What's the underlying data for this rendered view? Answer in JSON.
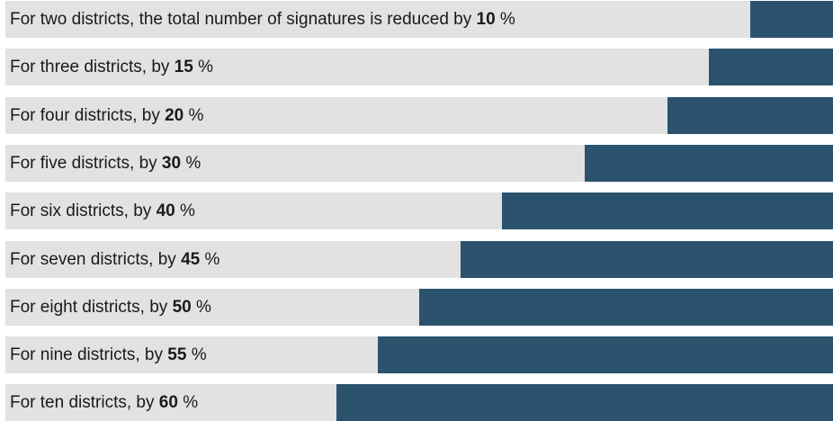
{
  "colors": {
    "track": "#e2e2e2",
    "fill": "#2b536e",
    "text": "#1a1a1a"
  },
  "chart_data": {
    "type": "bar",
    "orientation": "horizontal",
    "bars_anchor": "right",
    "xlim": [
      0,
      100
    ],
    "unit": "%",
    "rows": [
      {
        "prefix": "For two districts, the total number of signatures is reduced by",
        "value": 10
      },
      {
        "prefix": "For three districts, by",
        "value": 15
      },
      {
        "prefix": "For four districts, by",
        "value": 20
      },
      {
        "prefix": "For five districts, by",
        "value": 30
      },
      {
        "prefix": "For six districts, by",
        "value": 40
      },
      {
        "prefix": "For seven districts, by",
        "value": 45
      },
      {
        "prefix": "For eight districts, by",
        "value": 50
      },
      {
        "prefix": "For nine districts, by",
        "value": 55
      },
      {
        "prefix": "For ten districts, by",
        "value": 60
      }
    ]
  }
}
